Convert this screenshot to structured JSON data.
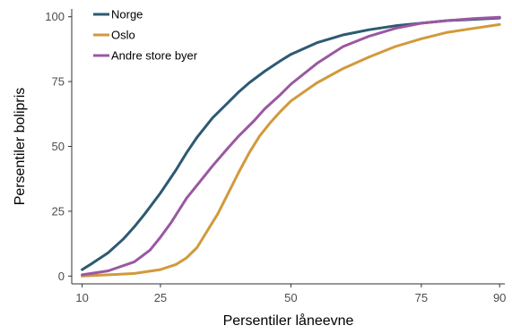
{
  "chart_data": {
    "type": "line",
    "title": "",
    "xlabel": "Persentiler låneevne",
    "ylabel": "Persentiler bolipris",
    "xlim": [
      8,
      91
    ],
    "ylim": [
      -3,
      103
    ],
    "xticks": [
      10,
      25,
      50,
      75,
      90
    ],
    "yticks": [
      0,
      25,
      50,
      75,
      100
    ],
    "grid": false,
    "legend": "top-left",
    "series": [
      {
        "name": "Norge",
        "color": "#2d5a72",
        "x": [
          10,
          12,
          15,
          18,
          20,
          22,
          25,
          28,
          30,
          32,
          35,
          38,
          40,
          42,
          45,
          48,
          50,
          55,
          60,
          65,
          70,
          75,
          80,
          85,
          90
        ],
        "y": [
          2.5,
          5,
          9,
          14.5,
          19,
          24,
          32,
          41,
          47.5,
          53.5,
          61,
          67,
          71,
          74.5,
          79,
          83,
          85.5,
          90,
          93,
          95,
          96.5,
          97.5,
          98.5,
          99,
          99.5
        ]
      },
      {
        "name": "Oslo",
        "color": "#d19a3c",
        "x": [
          10,
          15,
          20,
          25,
          28,
          30,
          32,
          34,
          36,
          38,
          40,
          42,
          44,
          46,
          48,
          50,
          55,
          60,
          65,
          70,
          75,
          80,
          85,
          90
        ],
        "y": [
          0,
          0.5,
          1,
          2.5,
          4.5,
          7,
          11,
          17.5,
          24,
          32,
          40,
          47.5,
          54,
          59,
          63.5,
          67.5,
          74.5,
          80,
          84.5,
          88.5,
          91.5,
          94,
          95.5,
          97
        ]
      },
      {
        "name": "Andre store byer",
        "color": "#9a58a2",
        "x": [
          10,
          15,
          20,
          23,
          25,
          27,
          30,
          33,
          35,
          38,
          40,
          43,
          45,
          48,
          50,
          55,
          60,
          65,
          70,
          75,
          80,
          85,
          90
        ],
        "y": [
          0.5,
          2,
          5.5,
          10,
          15,
          20.5,
          30,
          37.5,
          42.5,
          49.5,
          54,
          60,
          64.5,
          70,
          74,
          82,
          88.5,
          92.5,
          95.5,
          97.5,
          98.5,
          99.3,
          99.8
        ]
      }
    ]
  }
}
